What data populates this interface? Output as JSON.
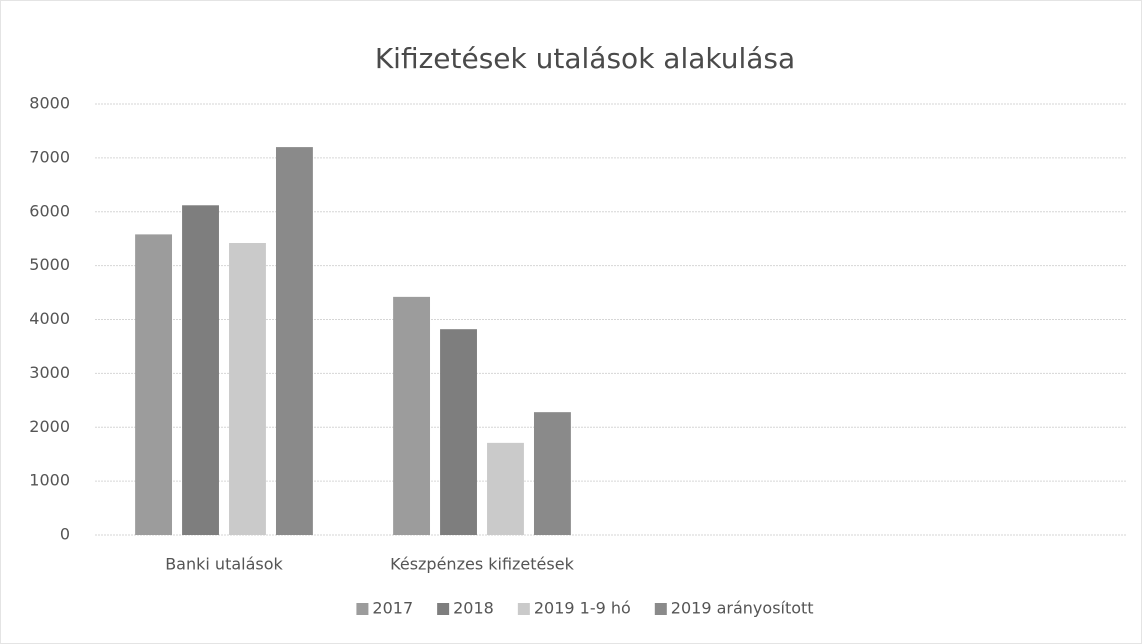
{
  "chart_data": {
    "type": "bar",
    "title": "Kifizetések utalások alakulása",
    "categories": [
      "Banki utalások",
      "Készpénzes kifizetések",
      null,
      null
    ],
    "series": [
      {
        "name": "2017",
        "color": "#9c9c9c",
        "values": [
          5580,
          4420,
          null,
          null
        ]
      },
      {
        "name": "2018",
        "color": "#7e7e7e",
        "values": [
          6120,
          3820,
          null,
          null
        ]
      },
      {
        "name": "2019 1-9 hó",
        "color": "#cacaca",
        "values": [
          5420,
          1710,
          null,
          null
        ]
      },
      {
        "name": "2019 arányosított",
        "color": "#8a8a8a",
        "values": [
          7200,
          2280,
          null,
          null
        ]
      }
    ],
    "ylim": [
      0,
      8000
    ],
    "yticks": [
      0,
      1000,
      2000,
      3000,
      4000,
      5000,
      6000,
      7000,
      8000
    ],
    "grid": true,
    "legend": "bottom"
  }
}
